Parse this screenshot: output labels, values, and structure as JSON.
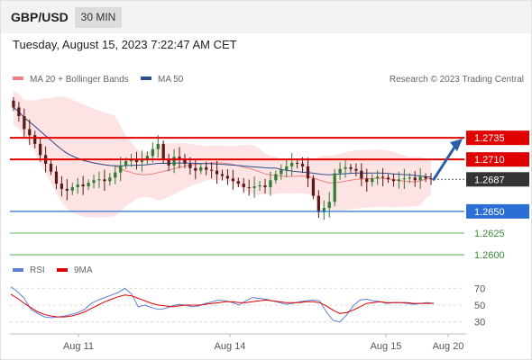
{
  "header": {
    "symbol": "GBP/USD",
    "timeframe": "30 MIN",
    "datetime": "Tuesday, August 15, 2023 7:22:47 AM CET"
  },
  "legend": {
    "ma20_bb": "MA 20 + Bollinger Bands",
    "ma50": "MA 50",
    "copyright": "Research © 2023 Trading Central",
    "colors": {
      "ma20": "#f08080",
      "ma50": "#2e4f8f"
    }
  },
  "rsi_legend": {
    "rsi": "RSI",
    "ma9": "9MA",
    "colors": {
      "rsi": "#5b7fd6",
      "ma9": "#e00000"
    }
  },
  "colors": {
    "up": "#2e7d32",
    "down": "#5a1a1a",
    "resistance": "#e00000",
    "support_blue": "#2b6fd6",
    "support_green": "#5cb85c",
    "last_price": "#333333",
    "band_fill": "#fddede",
    "arrow": "#2b5fa8"
  },
  "chart_data": [
    {
      "type": "candlestick",
      "x_labels": [
        "Aug 11",
        "Aug 14",
        "Aug 15",
        "Aug 20"
      ],
      "ylim": [
        1.26,
        1.2785
      ],
      "close": [
        1.277,
        1.276,
        1.2745,
        1.2738,
        1.2728,
        1.2715,
        1.2705,
        1.2696,
        1.2682,
        1.2676,
        1.2674,
        1.2678,
        1.2681,
        1.2679,
        1.2683,
        1.2686,
        1.2687,
        1.2685,
        1.2689,
        1.2695,
        1.2703,
        1.2708,
        1.271,
        1.2707,
        1.2709,
        1.2714,
        1.2722,
        1.2728,
        1.271,
        1.2703,
        1.2713,
        1.2711,
        1.2705,
        1.27,
        1.2697,
        1.2701,
        1.2698,
        1.2697,
        1.2693,
        1.2691,
        1.2688,
        1.2685,
        1.2682,
        1.2678,
        1.2677,
        1.2679,
        1.268,
        1.2678,
        1.2686,
        1.2693,
        1.2698,
        1.2702,
        1.2706,
        1.2705,
        1.2702,
        1.2688,
        1.2668,
        1.2649,
        1.2654,
        1.2661,
        1.2694,
        1.2699,
        1.2701,
        1.2699,
        1.2697,
        1.2688,
        1.2684,
        1.2688,
        1.269,
        1.2689,
        1.2687,
        1.2685,
        1.2687,
        1.2688,
        1.2689,
        1.2686,
        1.269,
        1.2688,
        1.2687
      ],
      "levels": [
        {
          "label": "1.2735",
          "value": 1.2735,
          "kind": "resistance"
        },
        {
          "label": "1.2710",
          "value": 1.271,
          "kind": "resistance"
        },
        {
          "label": "1.2687",
          "value": 1.2687,
          "kind": "last"
        },
        {
          "label": "1.2650",
          "value": 1.265,
          "kind": "support"
        },
        {
          "label": "1.2625",
          "value": 1.2625,
          "kind": "minor"
        },
        {
          "label": "1.2600",
          "value": 1.26,
          "kind": "minor"
        }
      ],
      "projection": {
        "from": 1.2687,
        "to": 1.2735
      }
    },
    {
      "type": "line",
      "title": "RSI",
      "ylim": [
        20,
        80
      ],
      "y_ticks": [
        "70",
        "50",
        "30"
      ],
      "series": [
        {
          "name": "RSI",
          "values": [
            72,
            66,
            58,
            45,
            40,
            36,
            35,
            36,
            37,
            39,
            41,
            45,
            52,
            56,
            59,
            62,
            65,
            70,
            63,
            48,
            50,
            47,
            45,
            46,
            49,
            51,
            50,
            48,
            49,
            52,
            54,
            56,
            55,
            53,
            50,
            55,
            59,
            58,
            57,
            55,
            53,
            51,
            52,
            54,
            55,
            56,
            55,
            42,
            32,
            30,
            38,
            49,
            56,
            57,
            55,
            54,
            52,
            53,
            53,
            52,
            51,
            52,
            53,
            52
          ]
        },
        {
          "name": "9MA",
          "values": [
            63,
            58,
            52,
            47,
            42,
            39,
            37,
            36,
            36,
            37,
            39,
            42,
            46,
            50,
            54,
            57,
            60,
            62,
            61,
            58,
            55,
            52,
            50,
            49,
            48,
            49,
            50,
            50,
            50,
            51,
            52,
            53,
            54,
            54,
            53,
            53,
            54,
            55,
            56,
            55,
            54,
            53,
            53,
            53,
            54,
            54,
            53,
            49,
            44,
            40,
            41,
            44,
            48,
            52,
            53,
            54,
            53,
            53,
            53,
            53,
            52,
            52,
            52,
            52
          ]
        }
      ]
    }
  ]
}
